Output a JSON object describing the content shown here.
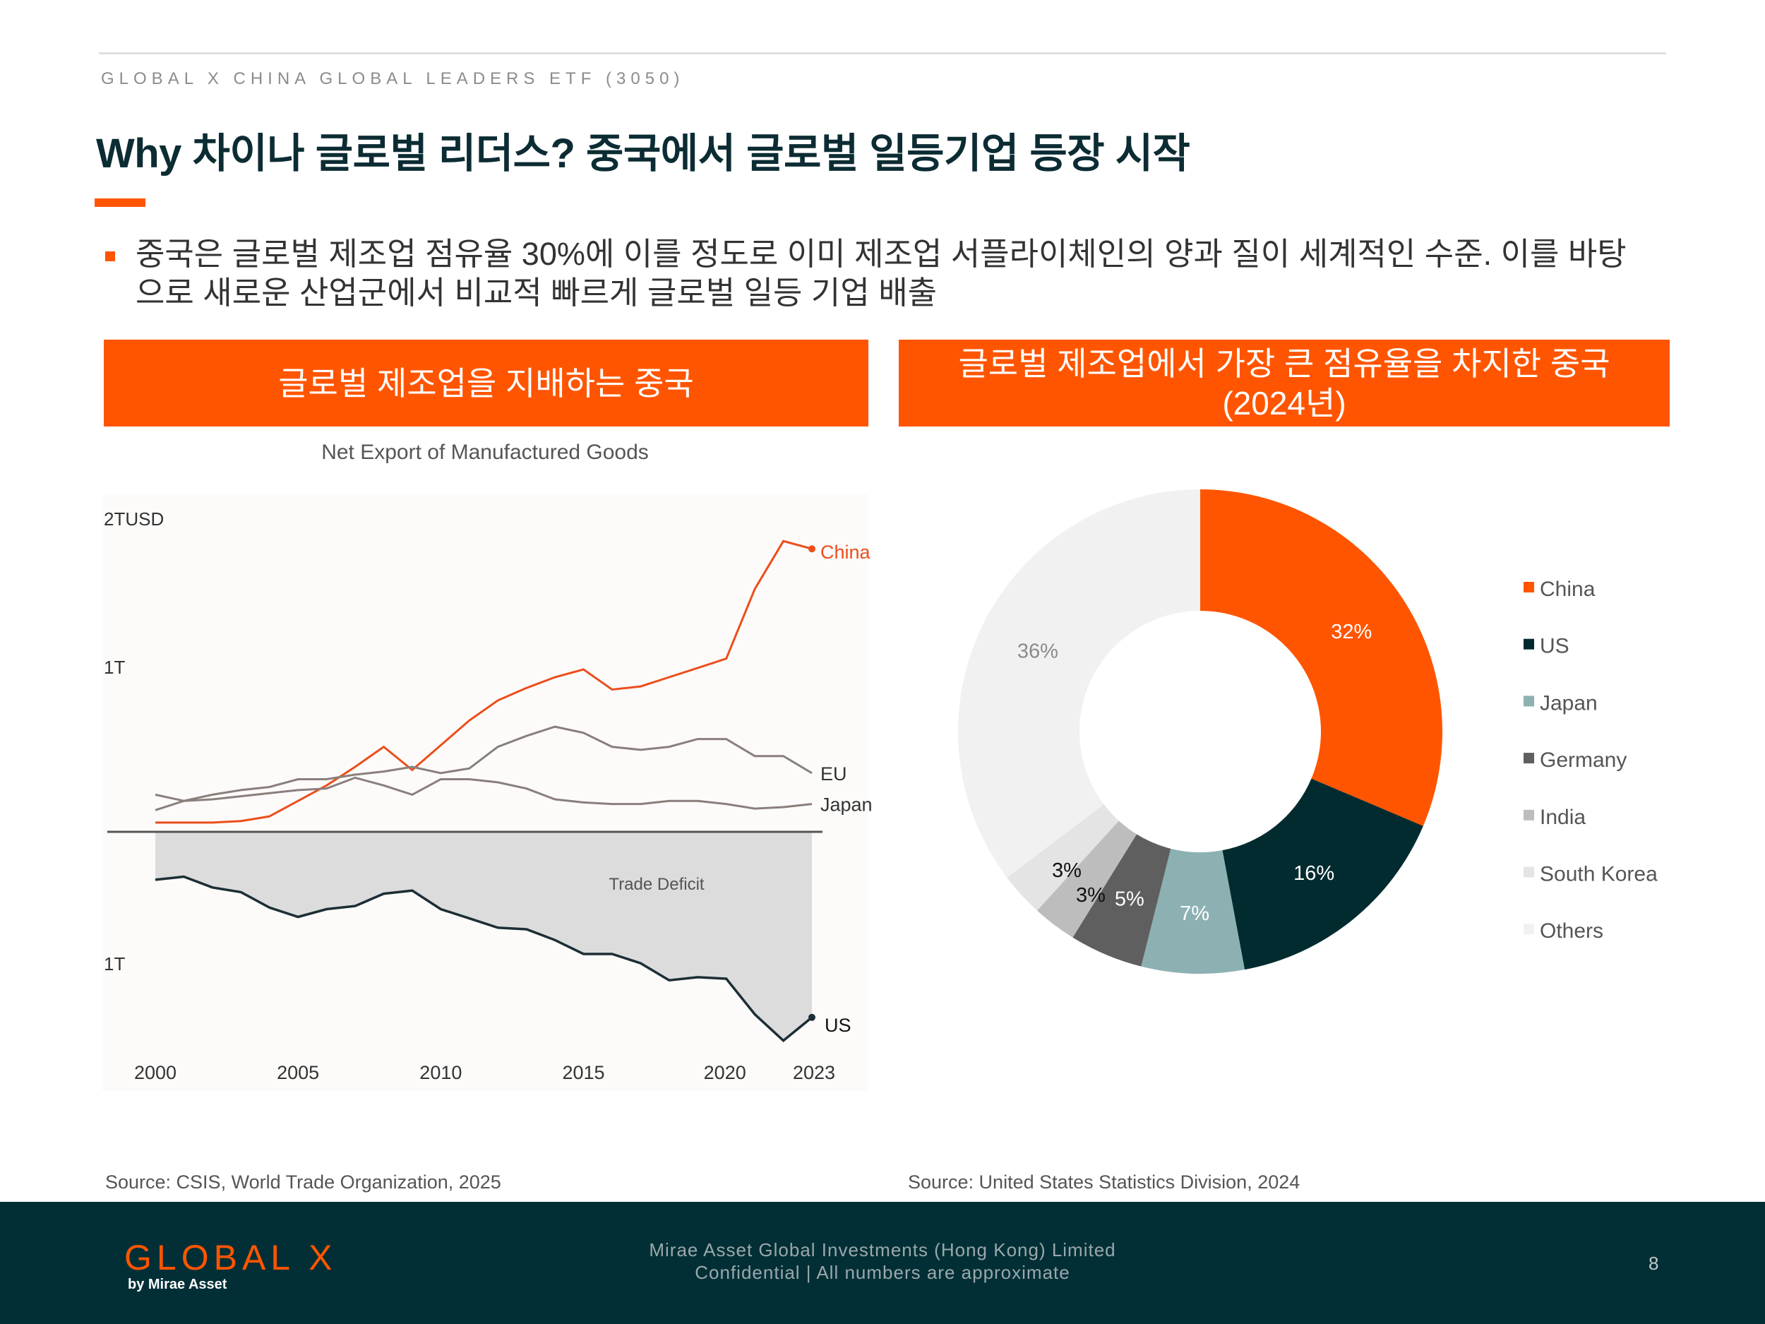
{
  "header": {
    "fund_label": "GLOBAL X CHINA GLOBAL LEADERS ETF (3050)",
    "title": "Why 차이나 글로벌 리더스? 중국에서 글로벌 일등기업 등장 시작"
  },
  "bullet": "중국은 글로벌 제조업 점유율 30%에 이를 정도로 이미 제조업 서플라이체인의 양과 질이 세계적인 수준. 이를 바탕으로 새로운 산업군에서 비교적 빠르게 글로벌 일등 기업 배출",
  "left_panel": {
    "header": "글로벌 제조업을 지배하는 중국",
    "source": "Source: CSIS, World Trade Organization, 2025"
  },
  "right_panel": {
    "header_line1": "글로벌 제조업에서 가장 큰 점유율을 차지한 중국",
    "header_line2": "(2024년)",
    "source": "Source: United States Statistics Division, 2024"
  },
  "footer": {
    "logo": "GLOBAL X",
    "logo_sub": "by Mirae Asset",
    "company_line1": "Mirae Asset Global Investments (Hong Kong) Limited",
    "company_line2": "Confidential | All numbers are approximate",
    "page": "8"
  },
  "chart_data": [
    {
      "type": "line",
      "title": "Net Export of Manufactured Goods",
      "y_tick_labels": [
        "2TUSD",
        "1T",
        "1T"
      ],
      "annotation": "Trade Deficit",
      "xlim": [
        2000,
        2023
      ],
      "ylim": [
        -1.4,
        2.0
      ],
      "x_ticks": [
        "2000",
        "2005",
        "2010",
        "2015",
        "2020",
        "2023"
      ],
      "x": [
        2000,
        2001,
        2002,
        2003,
        2004,
        2005,
        2006,
        2007,
        2008,
        2009,
        2010,
        2011,
        2012,
        2013,
        2014,
        2015,
        2016,
        2017,
        2018,
        2019,
        2020,
        2021,
        2022,
        2023
      ],
      "series": [
        {
          "name": "China",
          "color": "#ec4e1c",
          "values": [
            0.06,
            0.06,
            0.06,
            0.07,
            0.1,
            0.2,
            0.3,
            0.42,
            0.55,
            0.4,
            0.56,
            0.72,
            0.85,
            0.93,
            1.0,
            1.05,
            0.92,
            0.94,
            1.0,
            1.06,
            1.12,
            1.57,
            1.88,
            1.83
          ]
        },
        {
          "name": "EU",
          "color": "#8a7f7c",
          "values": [
            0.14,
            0.2,
            0.24,
            0.27,
            0.29,
            0.34,
            0.34,
            0.37,
            0.39,
            0.42,
            0.38,
            0.41,
            0.55,
            0.62,
            0.68,
            0.64,
            0.55,
            0.53,
            0.55,
            0.6,
            0.6,
            0.49,
            0.49,
            0.38
          ]
        },
        {
          "name": "Japan",
          "color": "#8a7f7c",
          "values": [
            0.24,
            0.2,
            0.21,
            0.23,
            0.25,
            0.27,
            0.28,
            0.35,
            0.3,
            0.24,
            0.34,
            0.34,
            0.32,
            0.28,
            0.21,
            0.19,
            0.18,
            0.18,
            0.2,
            0.2,
            0.18,
            0.15,
            0.16,
            0.18
          ]
        },
        {
          "name": "US",
          "color": "#1c2e35",
          "values": [
            -0.31,
            -0.29,
            -0.36,
            -0.39,
            -0.49,
            -0.55,
            -0.5,
            -0.48,
            -0.4,
            -0.38,
            -0.5,
            -0.56,
            -0.62,
            -0.63,
            -0.7,
            -0.79,
            -0.79,
            -0.85,
            -0.96,
            -0.94,
            -0.95,
            -1.18,
            -1.35,
            -1.2
          ]
        }
      ]
    },
    {
      "type": "pie",
      "categories": [
        "China",
        "US",
        "Japan",
        "Germany",
        "India",
        "South Korea",
        "Others"
      ],
      "values": [
        32,
        16,
        7,
        5,
        3,
        3,
        36
      ],
      "labels": [
        "32%",
        "16%",
        "7%",
        "5%",
        "3%",
        "3%",
        "36%"
      ],
      "colors": [
        "#ff5500",
        "#022b30",
        "#8db1b2",
        "#5f5f5f",
        "#bdbdbd",
        "#e4e4e4",
        "#f1f1f1"
      ],
      "label_colors": [
        "#ffffff",
        "#ffffff",
        "#ffffff",
        "#ffffff",
        "#111111",
        "#111111",
        "#8a8a8a"
      ],
      "legend_position": "right"
    }
  ]
}
